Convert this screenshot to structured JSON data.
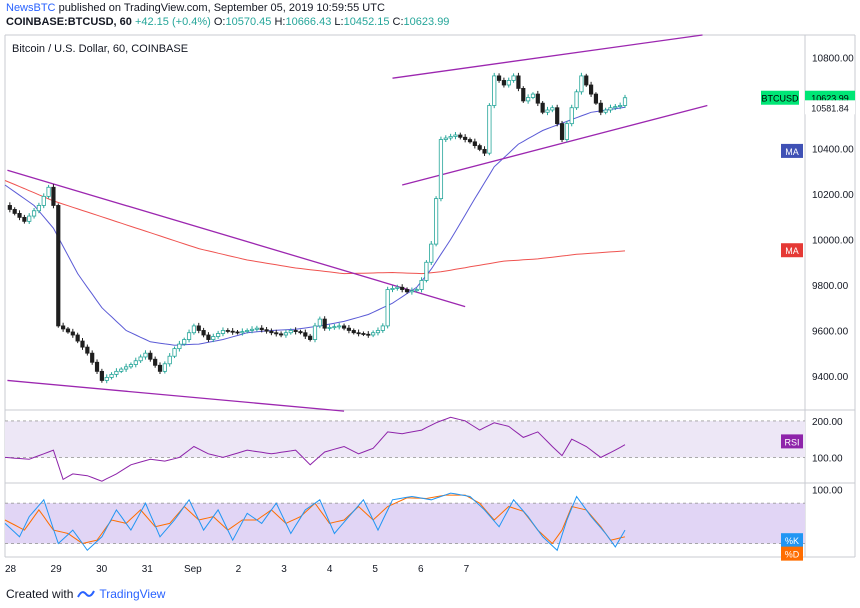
{
  "header": {
    "brand": "NewsBTC",
    "published": " published on TradingView.com, September 05, 2019 10:59:55 UTC",
    "symbol": "COINBASE:BTCUSD, 60",
    "change": "+42.15 (+0.4%)",
    "open_label": "O:",
    "open": "10570.45",
    "high_label": "H:",
    "high": "10666.43",
    "low_label": "L:",
    "low": "10452.15",
    "close_label": "C:",
    "close": "10623.99"
  },
  "footer": {
    "created_with": "Created with",
    "brand": "TradingView"
  },
  "colors": {
    "bull": "#26a69a",
    "bear": "#1e1e1e",
    "ma_fast": "#5b5bd6",
    "ma_slow": "#ef5350",
    "trendline": "#9c27b0",
    "rsi": "#8e24aa",
    "k": "#2196f3",
    "d": "#ff6d00",
    "band": "#ede7f6"
  },
  "chart_data": [
    {
      "type": "candlestick",
      "title": "Bitcoin / U.S. Dollar, 60, COINBASE",
      "x_ticks": [
        "28",
        "29",
        "30",
        "31",
        "Sep",
        "2",
        "3",
        "4",
        "5",
        "6",
        "7"
      ],
      "y_ticks": [
        "10800.00",
        "10600.00",
        "10400.00",
        "10200.00",
        "10000.00",
        "9800.00",
        "9600.00",
        "9400.00"
      ],
      "ylim": [
        9250,
        10900
      ],
      "grid": false,
      "series_labels": {
        "price": {
          "name": "BTCUSD",
          "value": "10623.99"
        },
        "ma_fast_value": "10581.84",
        "ma_fast": "MA",
        "ma_slow": "MA"
      },
      "price_anchors": [
        [
          0,
          10150
        ],
        [
          4,
          10080
        ],
        [
          7,
          10150
        ],
        [
          9,
          10230
        ],
        [
          10,
          10150
        ],
        [
          11,
          9620
        ],
        [
          14,
          9580
        ],
        [
          17,
          9500
        ],
        [
          20,
          9380
        ],
        [
          23,
          9420
        ],
        [
          26,
          9450
        ],
        [
          29,
          9500
        ],
        [
          32,
          9420
        ],
        [
          35,
          9520
        ],
        [
          37,
          9560
        ],
        [
          39,
          9620
        ],
        [
          42,
          9560
        ],
        [
          45,
          9600
        ],
        [
          48,
          9590
        ],
        [
          52,
          9610
        ],
        [
          55,
          9590
        ],
        [
          57,
          9580
        ],
        [
          59,
          9600
        ],
        [
          61,
          9590
        ],
        [
          63,
          9560
        ],
        [
          64,
          9620
        ],
        [
          65,
          9650
        ],
        [
          66,
          9610
        ],
        [
          69,
          9620
        ],
        [
          72,
          9590
        ],
        [
          75,
          9580
        ],
        [
          77,
          9600
        ],
        [
          78,
          9620
        ],
        [
          79,
          9780
        ],
        [
          81,
          9790
        ],
        [
          83,
          9770
        ],
        [
          85,
          9780
        ],
        [
          86,
          9820
        ],
        [
          87,
          9900
        ],
        [
          88,
          9980
        ],
        [
          89,
          10180
        ],
        [
          90,
          10440
        ],
        [
          93,
          10460
        ],
        [
          96,
          10430
        ],
        [
          99,
          10380
        ],
        [
          100,
          10590
        ],
        [
          101,
          10720
        ],
        [
          103,
          10680
        ],
        [
          105,
          10720
        ],
        [
          107,
          10610
        ],
        [
          109,
          10640
        ],
        [
          111,
          10560
        ],
        [
          113,
          10580
        ],
        [
          115,
          10440
        ],
        [
          117,
          10580
        ],
        [
          119,
          10720
        ],
        [
          121,
          10640
        ],
        [
          123,
          10560
        ],
        [
          125,
          10580
        ],
        [
          127,
          10590
        ],
        [
          128,
          10623.99
        ]
      ],
      "ma_fast_anchors": [
        [
          0,
          10240
        ],
        [
          6,
          10150
        ],
        [
          10,
          10050
        ],
        [
          15,
          9850
        ],
        [
          20,
          9700
        ],
        [
          25,
          9600
        ],
        [
          30,
          9550
        ],
        [
          35,
          9535
        ],
        [
          40,
          9540
        ],
        [
          45,
          9560
        ],
        [
          50,
          9590
        ],
        [
          55,
          9600
        ],
        [
          60,
          9605
        ],
        [
          65,
          9620
        ],
        [
          70,
          9640
        ],
        [
          75,
          9670
        ],
        [
          80,
          9720
        ],
        [
          85,
          9790
        ],
        [
          88,
          9870
        ],
        [
          92,
          10000
        ],
        [
          97,
          10180
        ],
        [
          101,
          10320
        ],
        [
          106,
          10420
        ],
        [
          111,
          10480
        ],
        [
          116,
          10520
        ],
        [
          121,
          10560
        ],
        [
          128,
          10581.84
        ]
      ],
      "ma_slow_anchors": [
        [
          0,
          10260
        ],
        [
          10,
          10170
        ],
        [
          20,
          10100
        ],
        [
          30,
          10030
        ],
        [
          40,
          9960
        ],
        [
          50,
          9910
        ],
        [
          60,
          9875
        ],
        [
          70,
          9850
        ],
        [
          80,
          9855
        ],
        [
          86,
          9850
        ],
        [
          90,
          9858
        ],
        [
          96,
          9880
        ],
        [
          103,
          9905
        ],
        [
          110,
          9915
        ],
        [
          118,
          9935
        ],
        [
          128,
          9950
        ]
      ],
      "trendlines": [
        {
          "name": "channel-top",
          "from": [
            0.5,
            10305
          ],
          "to": [
            95,
            9705
          ]
        },
        {
          "name": "channel-bottom",
          "from": [
            0.5,
            9380
          ],
          "to": [
            70,
            9245
          ]
        },
        {
          "name": "rising-upper",
          "from": [
            80,
            10710
          ],
          "to": [
            144,
            10900
          ]
        },
        {
          "name": "rising-lower",
          "from": [
            82,
            10240
          ],
          "to": [
            145,
            10590
          ]
        }
      ]
    },
    {
      "type": "line",
      "title": "",
      "label": "RSI",
      "y_ticks": [
        "200.00",
        "100.00"
      ],
      "ylim": [
        30,
        230
      ],
      "band": [
        100,
        200
      ],
      "anchors": [
        [
          0,
          100
        ],
        [
          5,
          95
        ],
        [
          10,
          120
        ],
        [
          12,
          40
        ],
        [
          14,
          55
        ],
        [
          17,
          50
        ],
        [
          20,
          35
        ],
        [
          23,
          55
        ],
        [
          26,
          80
        ],
        [
          30,
          95
        ],
        [
          33,
          90
        ],
        [
          36,
          100
        ],
        [
          39,
          130
        ],
        [
          42,
          110
        ],
        [
          45,
          100
        ],
        [
          50,
          120
        ],
        [
          55,
          110
        ],
        [
          60,
          120
        ],
        [
          63,
          80
        ],
        [
          66,
          115
        ],
        [
          70,
          130
        ],
        [
          73,
          110
        ],
        [
          76,
          125
        ],
        [
          79,
          170
        ],
        [
          82,
          165
        ],
        [
          86,
          175
        ],
        [
          89,
          195
        ],
        [
          92,
          210
        ],
        [
          95,
          200
        ],
        [
          98,
          175
        ],
        [
          101,
          195
        ],
        [
          104,
          185
        ],
        [
          107,
          155
        ],
        [
          110,
          170
        ],
        [
          113,
          130
        ],
        [
          115,
          105
        ],
        [
          117,
          150
        ],
        [
          120,
          130
        ],
        [
          123,
          100
        ],
        [
          126,
          120
        ],
        [
          128,
          135
        ]
      ]
    },
    {
      "type": "line",
      "title": "",
      "y_ticks": [
        "100.00"
      ],
      "ylim": [
        0,
        110
      ],
      "band": [
        20,
        80
      ],
      "series": [
        {
          "name": "%K",
          "anchors": [
            [
              0,
              50
            ],
            [
              3,
              30
            ],
            [
              5,
              60
            ],
            [
              8,
              85
            ],
            [
              11,
              20
            ],
            [
              14,
              40
            ],
            [
              17,
              10
            ],
            [
              20,
              30
            ],
            [
              23,
              70
            ],
            [
              26,
              40
            ],
            [
              29,
              80
            ],
            [
              32,
              30
            ],
            [
              35,
              55
            ],
            [
              38,
              85
            ],
            [
              41,
              40
            ],
            [
              44,
              70
            ],
            [
              47,
              25
            ],
            [
              50,
              65
            ],
            [
              53,
              50
            ],
            [
              56,
              80
            ],
            [
              59,
              35
            ],
            [
              62,
              70
            ],
            [
              65,
              85
            ],
            [
              68,
              35
            ],
            [
              71,
              60
            ],
            [
              74,
              85
            ],
            [
              77,
              40
            ],
            [
              80,
              85
            ],
            [
              84,
              90
            ],
            [
              88,
              85
            ],
            [
              92,
              95
            ],
            [
              96,
              90
            ],
            [
              99,
              70
            ],
            [
              102,
              45
            ],
            [
              105,
              85
            ],
            [
              108,
              60
            ],
            [
              111,
              30
            ],
            [
              114,
              10
            ],
            [
              116,
              55
            ],
            [
              118,
              90
            ],
            [
              121,
              60
            ],
            [
              124,
              35
            ],
            [
              126,
              15
            ],
            [
              128,
              40
            ]
          ]
        },
        {
          "name": "%D",
          "anchors": [
            [
              0,
              55
            ],
            [
              4,
              40
            ],
            [
              7,
              70
            ],
            [
              10,
              40
            ],
            [
              13,
              35
            ],
            [
              16,
              20
            ],
            [
              19,
              25
            ],
            [
              22,
              55
            ],
            [
              25,
              50
            ],
            [
              28,
              70
            ],
            [
              31,
              45
            ],
            [
              34,
              50
            ],
            [
              37,
              75
            ],
            [
              40,
              55
            ],
            [
              43,
              60
            ],
            [
              46,
              40
            ],
            [
              49,
              55
            ],
            [
              52,
              55
            ],
            [
              55,
              70
            ],
            [
              58,
              50
            ],
            [
              61,
              60
            ],
            [
              64,
              80
            ],
            [
              67,
              50
            ],
            [
              70,
              55
            ],
            [
              73,
              75
            ],
            [
              76,
              55
            ],
            [
              79,
              75
            ],
            [
              83,
              88
            ],
            [
              87,
              87
            ],
            [
              91,
              92
            ],
            [
              95,
              92
            ],
            [
              98,
              80
            ],
            [
              101,
              55
            ],
            [
              104,
              75
            ],
            [
              107,
              68
            ],
            [
              110,
              40
            ],
            [
              113,
              20
            ],
            [
              115,
              40
            ],
            [
              117,
              75
            ],
            [
              120,
              70
            ],
            [
              123,
              45
            ],
            [
              125,
              25
            ],
            [
              128,
              30
            ]
          ]
        }
      ],
      "right_labels": [
        "%K",
        "%D"
      ]
    }
  ]
}
